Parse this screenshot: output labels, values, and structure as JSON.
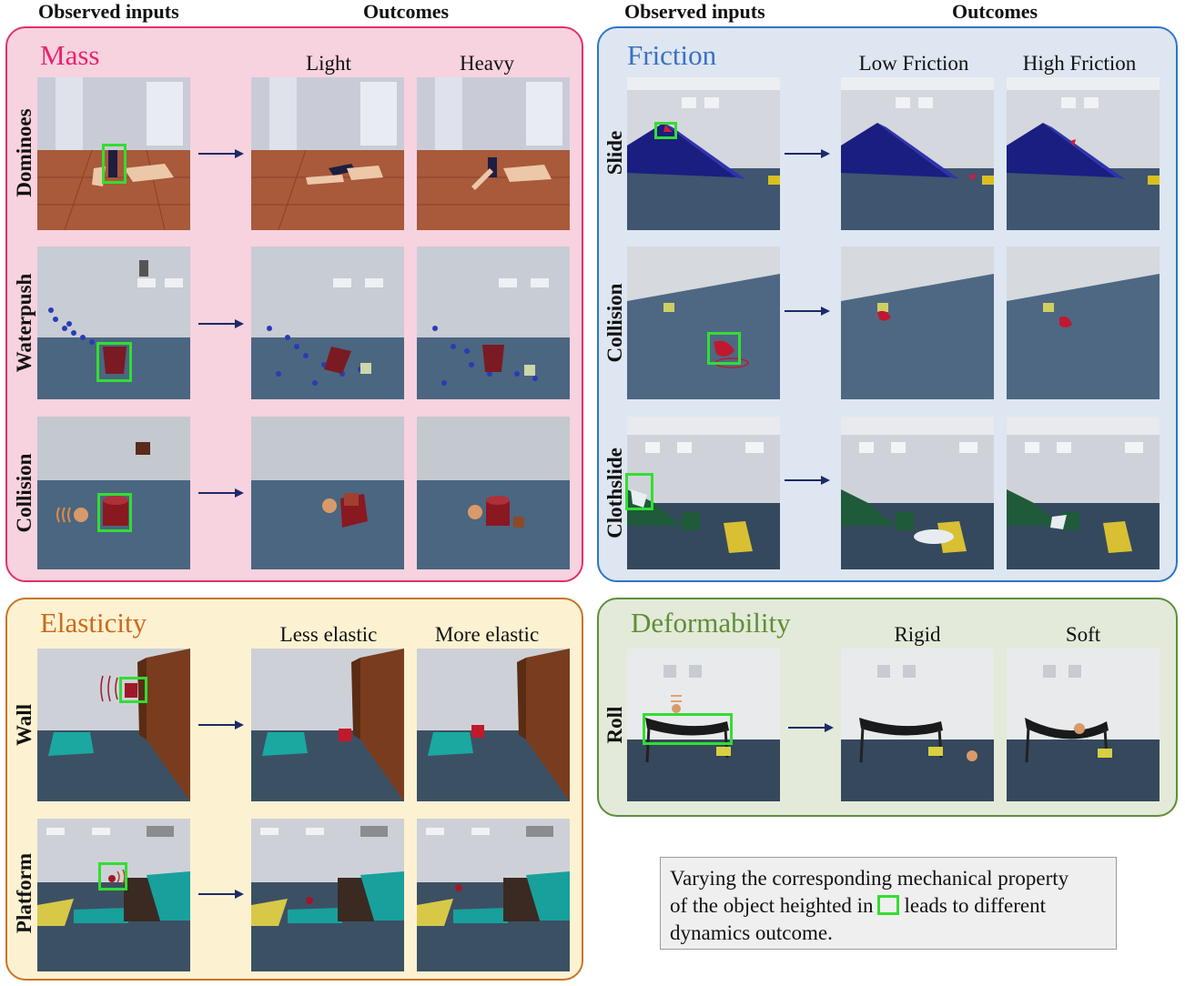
{
  "headers": {
    "observed_left": "Observed inputs",
    "outcomes_left": "Outcomes",
    "observed_right": "Observed inputs",
    "outcomes_right": "Outcomes"
  },
  "panels": {
    "mass": {
      "title": "Mass",
      "title_color": "#e8226e",
      "col1": "Light",
      "col2": "Heavy",
      "rows": [
        "Dominoes",
        "Waterpush",
        "Collision"
      ]
    },
    "friction": {
      "title": "Friction",
      "title_color": "#3b6fc4",
      "col1": "Low Friction",
      "col2": "High Friction",
      "rows": [
        "Slide",
        "Collision",
        "Clothslide"
      ]
    },
    "elasticity": {
      "title": "Elasticity",
      "title_color": "#cc6a1a",
      "col1": "Less elastic",
      "col2": "More elastic",
      "rows": [
        "Wall",
        "Platform"
      ]
    },
    "deformability": {
      "title": "Deformability",
      "title_color": "#5f8f35",
      "col1": "Rigid",
      "col2": "Soft",
      "rows": [
        "Roll"
      ]
    }
  },
  "caption": {
    "line1": "Varying the corresponding mechanical property",
    "line2a": "of the object heighted in",
    "line2b": "leads to different",
    "line3": "dynamics outcome."
  },
  "colors": {
    "mass_bg": "#f7d2df",
    "mass_border": "#e0306f",
    "friction_bg": "#dde6f1",
    "friction_border": "#2f76c4",
    "elasticity_bg": "#fcf2d2",
    "elasticity_border": "#c9732b",
    "deform_bg": "#e3ead9",
    "deform_border": "#5e8f3a",
    "highlight": "#33dd33",
    "arrow": "#1c2a66"
  }
}
